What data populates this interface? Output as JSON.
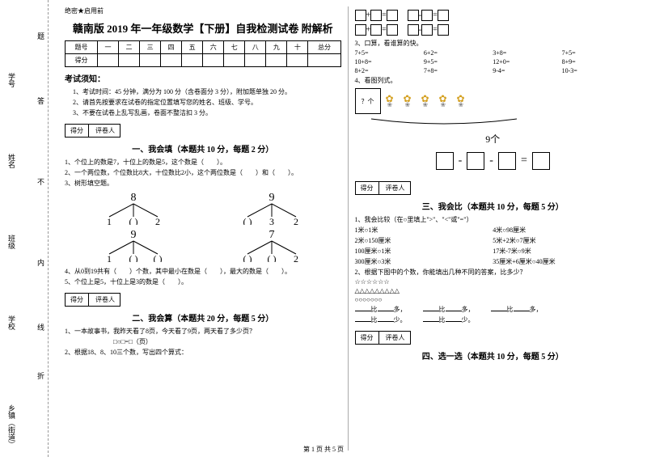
{
  "left_labels": {
    "l1": "乡镇（街道）",
    "l2": "学校",
    "l3": "班级",
    "l4": "姓名",
    "l5": "学号",
    "fold1": "折",
    "fold2": "线",
    "fold3": "内",
    "fold4": "不",
    "fold5": "答",
    "fold6": "题"
  },
  "header_small": "绝密★启用前",
  "title": "赣南版 2019 年一年级数学【下册】自我检测试卷 附解析",
  "score_table": {
    "cols": [
      "题号",
      "一",
      "二",
      "三",
      "四",
      "五",
      "六",
      "七",
      "八",
      "九",
      "十",
      "总分"
    ],
    "row": "得分"
  },
  "notice": {
    "title": "考试须知：",
    "items": [
      "1、考试时间：45 分钟，满分为 100 分（含卷面分 3 分），附加题单独 20 分。",
      "2、请首先按要求在试卷的指定位置填写您的姓名、班级、学号。",
      "3、不要在试卷上乱写乱画，卷面不整洁扣 3 分。"
    ]
  },
  "scorebox": {
    "a": "得分",
    "b": "评卷人"
  },
  "sections": {
    "s1": "一、我会填（本题共 10 分，每题 2 分）",
    "s2": "二、我会算（本题共 20 分，每题 5 分）",
    "s3": "三、我会比（本题共 10 分，每题 5 分）",
    "s4": "四、选一选（本题共 10 分，每题 5 分）"
  },
  "q1": {
    "t1": "1、个位上的数是7，十位上的数是5，这个数是（　　）。",
    "t2": "2、一个两位数，个位数比8大，十位数比2小，这个两位数是（　　）和（　　）。",
    "t3": "3、树形填空题。",
    "trees": {
      "a": "8",
      "a1": "1",
      "a2": "( )",
      "a3": "2",
      "b": "9",
      "b1": "( )",
      "b2": "3",
      "b3": "2",
      "c": "9",
      "c1": "1",
      "c2": "( )",
      "c3": "( )",
      "d": "7",
      "d1": "( )",
      "d2": "( )",
      "d3": "2"
    },
    "t4": "4、从0到19共有（　　）个数，其中最小在数是（　　），最大的数是（　　）。",
    "t5": "5、个位上是5，十位上是3的数是（　　）。"
  },
  "q2": {
    "t1": "1、一本故事书，我昨天看了8页，今天看了9页，两天看了多少页？",
    "t1a": "□○□=□（页）",
    "t2": "2、根据18、8、10三个数，写出四个算式："
  },
  "boxrows": {
    "r1a": "□+□=□",
    "r1b": "□-□=□",
    "r2a": "□+□=□",
    "r2b": "□-□=□"
  },
  "q3": {
    "title": "3、口算，看谁算的快。",
    "rows": [
      [
        "7+5=",
        "6+2=",
        "3+8=",
        "7+5="
      ],
      [
        "10+8=",
        "9+5=",
        "12+0=",
        "8+9="
      ],
      [
        "8+2=",
        "7+8=",
        "9-4=",
        "10-3="
      ]
    ],
    "t4": "4、看图列式。",
    "cube": "？个",
    "brace": "9个"
  },
  "q_compare": {
    "t1": "1、我会比较（在○里填上\">\"、\"<\"或\"=\"）",
    "rows": [
      [
        "1米○1米",
        "4米○98厘米"
      ],
      [
        "2米○150厘米",
        "5米+2米○7厘米"
      ],
      [
        "100厘米○1米",
        "17米-7米○9米"
      ],
      [
        "300厘米○3米",
        "35厘米+6厘米○40厘米"
      ]
    ],
    "t2": "2、根据下图中的个数，你能填出几种不同的答案，比多少？",
    "stars": "☆☆☆☆☆☆",
    "tris": "△△△△△△△△△",
    "circs": "○○○○○○○",
    "fills": {
      "a": "比",
      "b": "多，",
      "c": "比",
      "d": "多，",
      "e": "比",
      "f": "多，",
      "g": "比",
      "h": "少。",
      "i": "比",
      "j": "少。"
    }
  },
  "footer": "第 1 页 共 5 页"
}
